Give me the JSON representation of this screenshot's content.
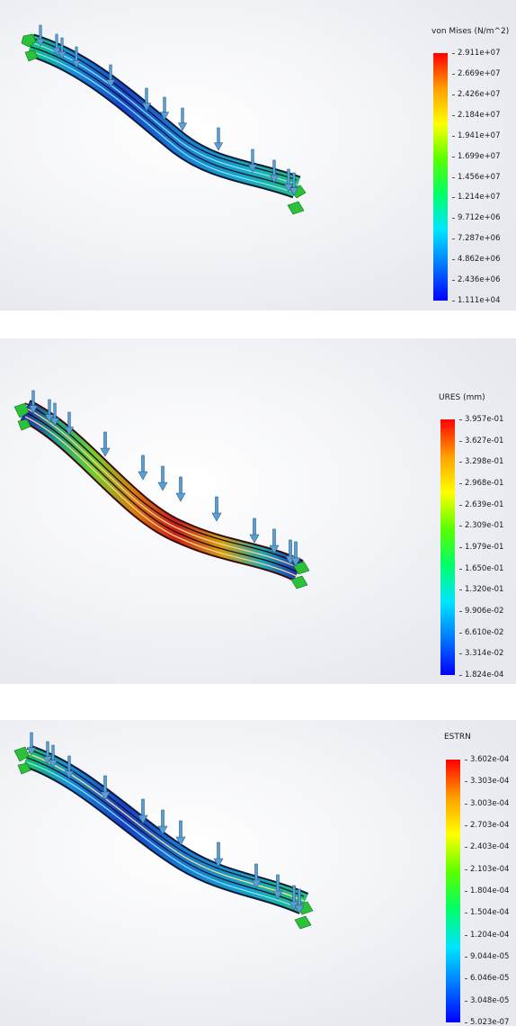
{
  "plots": [
    {
      "title": "von Mises (N/m^2)",
      "color_scale": [
        "#0000ff",
        "#0077ff",
        "#00e5ff",
        "#00ff6a",
        "#5aff00",
        "#ffff00",
        "#ff9f00",
        "#ff0000"
      ],
      "ticks": [
        "2.911e+07",
        "2.669e+07",
        "2.426e+07",
        "2.184e+07",
        "1.941e+07",
        "1.699e+07",
        "1.456e+07",
        "1.214e+07",
        "9.712e+06",
        "7.287e+06",
        "4.862e+06",
        "2.436e+06",
        "1.111e+04"
      ]
    },
    {
      "title": "URES (mm)",
      "color_scale": [
        "#0000ff",
        "#0077ff",
        "#00e5ff",
        "#00ff6a",
        "#5aff00",
        "#ffff00",
        "#ff9f00",
        "#ff0000"
      ],
      "ticks": [
        "3.957e-01",
        "3.627e-01",
        "3.298e-01",
        "2.968e-01",
        "2.639e-01",
        "2.309e-01",
        "1.979e-01",
        "1.650e-01",
        "1.320e-01",
        "9.906e-02",
        "6.610e-02",
        "3.314e-02",
        "1.824e-04"
      ]
    },
    {
      "title": "ESTRN",
      "color_scale": [
        "#0000ff",
        "#0077ff",
        "#00e5ff",
        "#00ff6a",
        "#5aff00",
        "#ffff00",
        "#ff9f00",
        "#ff0000"
      ],
      "ticks": [
        "3.602e-04",
        "3.303e-04",
        "3.003e-04",
        "2.703e-04",
        "2.403e-04",
        "2.103e-04",
        "1.804e-04",
        "1.504e-04",
        "1.204e-04",
        "9.044e-05",
        "6.046e-05",
        "3.048e-05",
        "5.023e-07"
      ]
    }
  ]
}
